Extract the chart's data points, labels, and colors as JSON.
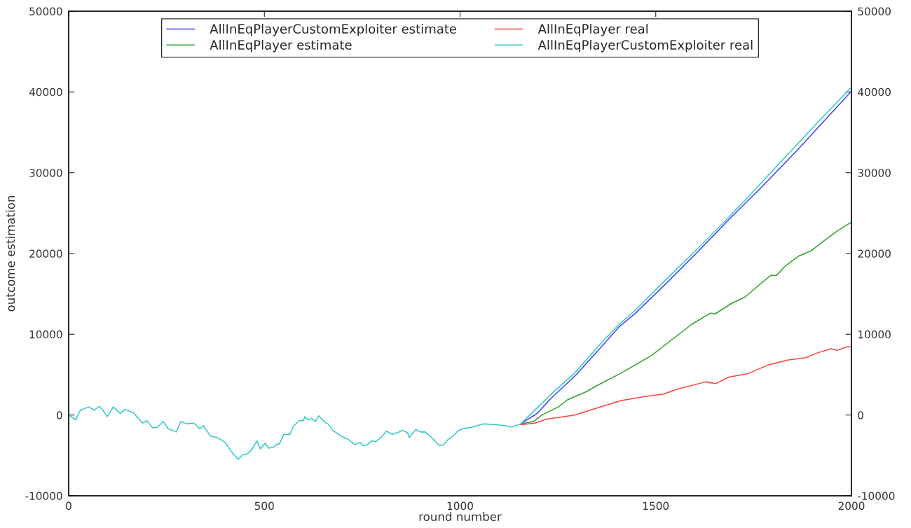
{
  "chart_data": {
    "type": "line",
    "xlabel": "round number",
    "ylabel": "outcome estimation",
    "xlim": [
      0,
      2000
    ],
    "xticks": [
      0,
      500,
      1000,
      1500,
      2000
    ],
    "ylim": [
      -10000,
      50000
    ],
    "yticks": [
      -10000,
      0,
      10000,
      20000,
      30000,
      40000,
      50000
    ],
    "y2lim": [
      -10000,
      50000
    ],
    "y2ticks": [
      -10000,
      0,
      10000,
      20000,
      30000,
      40000,
      50000
    ],
    "grid": false,
    "legend": "top",
    "marker": "none",
    "line_style": "solid",
    "series": [
      {
        "name": "AllInEqPlayerCustomExploiter estimate",
        "color": "#4040ff",
        "x": [
          1155,
          1197,
          1233,
          1293,
          1364,
          1406,
          1448,
          1531,
          1609,
          1687,
          1770,
          1860,
          1949,
          2000
        ],
        "values": [
          -1100,
          200,
          2100,
          4800,
          8600,
          10900,
          12600,
          16500,
          20300,
          24200,
          28200,
          32700,
          37400,
          40100
        ]
      },
      {
        "name": "AllInEqPlayer estimate",
        "color": "#30a030",
        "x": [
          1155,
          1188,
          1209,
          1251,
          1275,
          1323,
          1352,
          1412,
          1490,
          1543,
          1591,
          1639,
          1651,
          1693,
          1728,
          1764,
          1794,
          1809,
          1830,
          1866,
          1896,
          1925,
          1961,
          2000
        ],
        "values": [
          -1100,
          -800,
          0,
          1000,
          1900,
          2900,
          3700,
          5200,
          7400,
          9400,
          11200,
          12600,
          12500,
          13800,
          14600,
          16100,
          17300,
          17300,
          18400,
          19700,
          20300,
          21400,
          22700,
          23900
        ]
      },
      {
        "name": "AllInEqPlayer real",
        "color": "#ff4040",
        "x": [
          1155,
          1191,
          1221,
          1293,
          1352,
          1412,
          1472,
          1520,
          1555,
          1627,
          1654,
          1687,
          1734,
          1788,
          1836,
          1884,
          1913,
          1949,
          1964,
          1985,
          2000
        ],
        "values": [
          -1200,
          -1000,
          -500,
          0,
          900,
          1800,
          2300,
          2600,
          3200,
          4100,
          3900,
          4700,
          5100,
          6200,
          6800,
          7100,
          7700,
          8200,
          8000,
          8400,
          8500
        ]
      },
      {
        "name": "AllInEqPlayerCustomExploiter real",
        "color": "#30c8c8",
        "x": [
          0,
          18,
          30,
          51,
          66,
          78,
          87,
          99,
          114,
          132,
          144,
          165,
          189,
          200,
          215,
          227,
          242,
          254,
          275,
          287,
          302,
          320,
          335,
          344,
          362,
          380,
          400,
          415,
          433,
          445,
          457,
          469,
          481,
          490,
          502,
          511,
          523,
          532,
          538,
          550,
          565,
          574,
          589,
          600,
          603,
          612,
          621,
          630,
          639,
          654,
          663,
          675,
          696,
          714,
          732,
          744,
          753,
          762,
          774,
          785,
          800,
          812,
          827,
          839,
          854,
          866,
          870,
          887,
          899,
          911,
          932,
          947,
          958,
          970,
          982,
          994,
          1006,
          1030,
          1060,
          1090,
          1114,
          1132,
          1155,
          1233,
          1293,
          1364,
          1406,
          1448,
          1531,
          1609,
          1675,
          1740,
          1830,
          1919,
          2000
        ],
        "values": [
          0,
          -600,
          600,
          1000,
          600,
          1100,
          600,
          -200,
          1000,
          200,
          700,
          300,
          -1000,
          -700,
          -1600,
          -1500,
          -800,
          -1700,
          -2100,
          -800,
          -1100,
          -1000,
          -1700,
          -1300,
          -2600,
          -2800,
          -3400,
          -4500,
          -5500,
          -4900,
          -4800,
          -4200,
          -3200,
          -4200,
          -3500,
          -4100,
          -4000,
          -3600,
          -3600,
          -2400,
          -2400,
          -1400,
          -700,
          -700,
          -200,
          -600,
          -400,
          -800,
          -100,
          -900,
          -1100,
          -1900,
          -2600,
          -3000,
          -3700,
          -3400,
          -3800,
          -3700,
          -3200,
          -3300,
          -2700,
          -2000,
          -2400,
          -2200,
          -1900,
          -2200,
          -2800,
          -1800,
          -2100,
          -2100,
          -3000,
          -3800,
          -3700,
          -3000,
          -2600,
          -2000,
          -1700,
          -1500,
          -1100,
          -1200,
          -1300,
          -1500,
          -1100,
          2600,
          5200,
          9100,
          11200,
          13000,
          17000,
          20700,
          23900,
          27200,
          31900,
          36500,
          40600
        ]
      }
    ]
  }
}
